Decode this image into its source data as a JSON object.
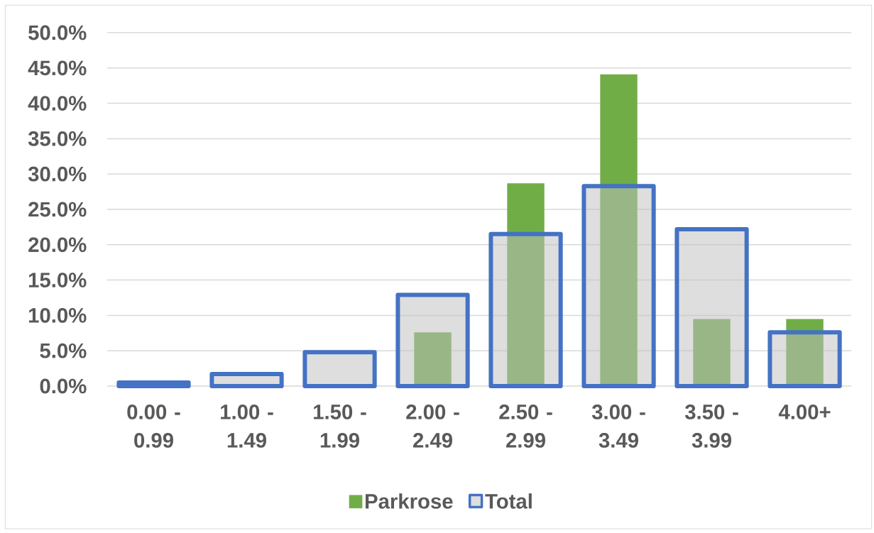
{
  "chart_data": {
    "type": "bar",
    "categories": [
      "0.00 - 0.99",
      "1.00 - 1.49",
      "1.50 - 1.99",
      "2.00 - 2.49",
      "2.50 - 2.99",
      "3.00 - 3.49",
      "3.50 - 3.99",
      "4.00+"
    ],
    "series": [
      {
        "name": "Parkrose",
        "color": "#70ad47",
        "values": [
          0,
          0,
          0,
          7.6,
          28.7,
          44.1,
          9.5,
          9.5
        ]
      },
      {
        "name": "Total",
        "color": "#4472c4",
        "values": [
          0.5,
          1.7,
          4.8,
          12.9,
          21.5,
          28.3,
          22.2,
          7.6
        ]
      }
    ],
    "ylim": [
      0,
      50
    ],
    "yticks": [
      {
        "value": 0,
        "label": "0.0%"
      },
      {
        "value": 5,
        "label": "5.0%"
      },
      {
        "value": 10,
        "label": "10.0%"
      },
      {
        "value": 15,
        "label": "15.0%"
      },
      {
        "value": 20,
        "label": "20.0%"
      },
      {
        "value": 25,
        "label": "25.0%"
      },
      {
        "value": 30,
        "label": "30.0%"
      },
      {
        "value": 35,
        "label": "35.0%"
      },
      {
        "value": 40,
        "label": "40.0%"
      },
      {
        "value": 45,
        "label": "45.0%"
      },
      {
        "value": 50,
        "label": "50.0%"
      }
    ],
    "grid": "y",
    "legend": "bottom"
  }
}
